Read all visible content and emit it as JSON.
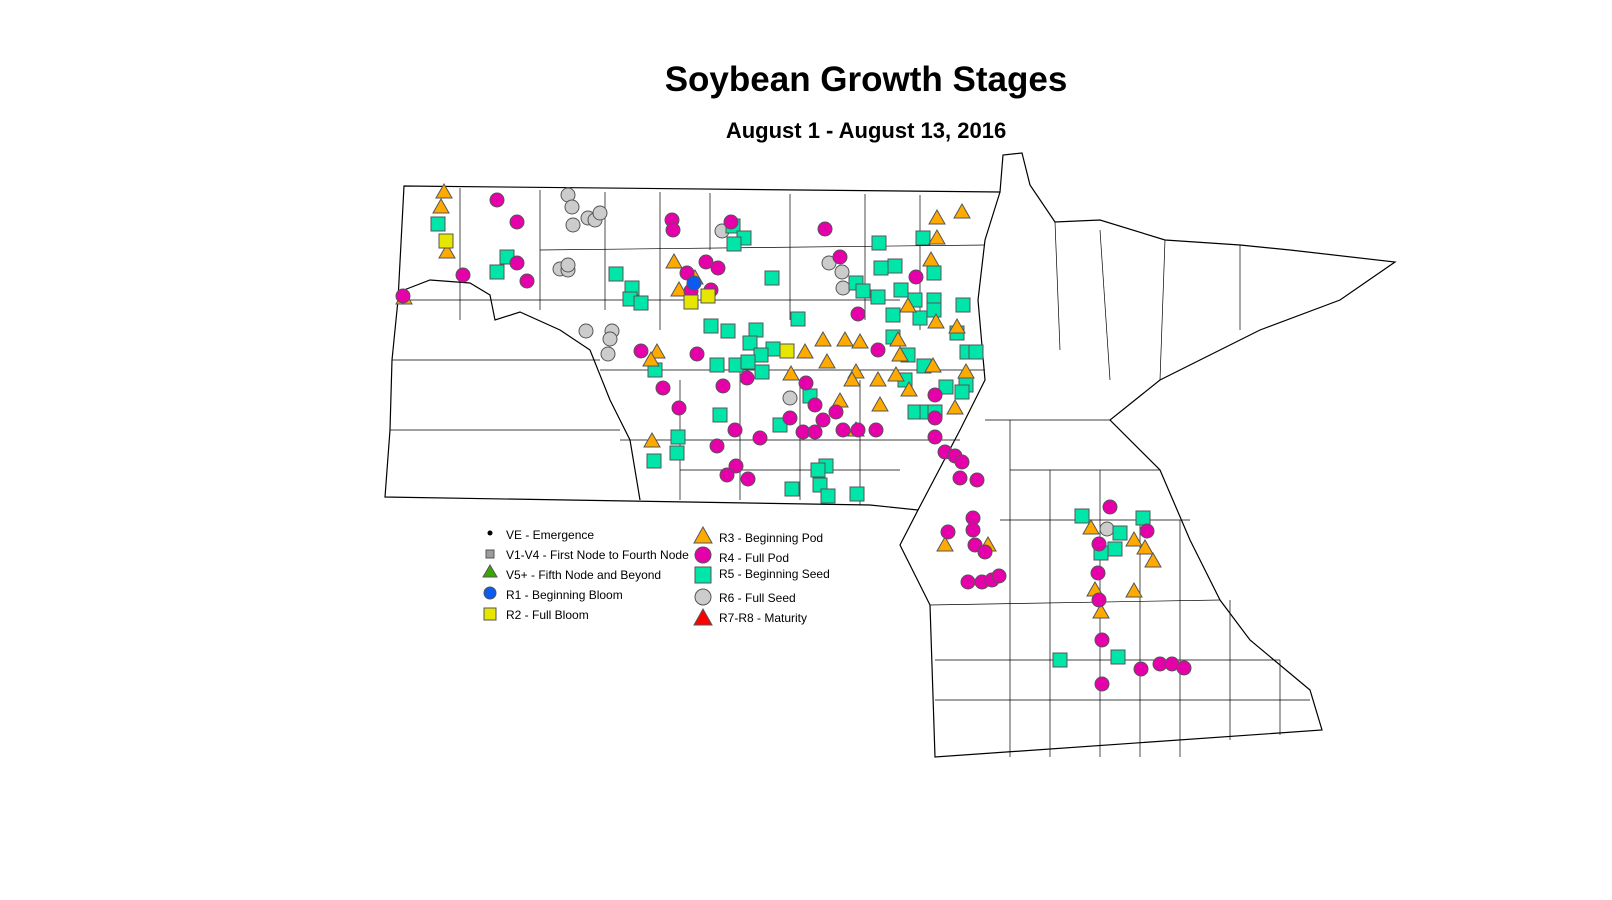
{
  "title": "Soybean Growth Stages",
  "subtitle": "August 1 - August 13, 2016",
  "legend": [
    {
      "stage": "VE",
      "label": "VE - Emergence",
      "symbol": "dot",
      "color": "#000000"
    },
    {
      "stage": "V1-V4",
      "label": "V1-V4 - First Node to Fourth Node",
      "symbol": "square-small",
      "color": "#9c9c9c"
    },
    {
      "stage": "V5+",
      "label": "V5+ - Fifth Node and Beyond",
      "symbol": "triangle",
      "color": "#38a800"
    },
    {
      "stage": "R1",
      "label": "R1 - Beginning Bloom",
      "symbol": "circle",
      "color": "#0a5cf0"
    },
    {
      "stage": "R2",
      "label": "R2 - Full Bloom",
      "symbol": "square",
      "color": "#e6e600"
    },
    {
      "stage": "R3",
      "label": "R3 - Beginning Pod",
      "symbol": "triangle",
      "color": "#ffaa00"
    },
    {
      "stage": "R4",
      "label": "R4 - Full Pod",
      "symbol": "circle",
      "color": "#e600a9"
    },
    {
      "stage": "R5",
      "label": "R5 - Beginning Seed",
      "symbol": "square",
      "color": "#00e6a9"
    },
    {
      "stage": "R6",
      "label": "R6 - Full Seed",
      "symbol": "circle",
      "color": "#cccccc"
    },
    {
      "stage": "R7-R8",
      "label": "R7-R8 - Maturity",
      "symbol": "triangle",
      "color": "#ff0000"
    }
  ]
}
